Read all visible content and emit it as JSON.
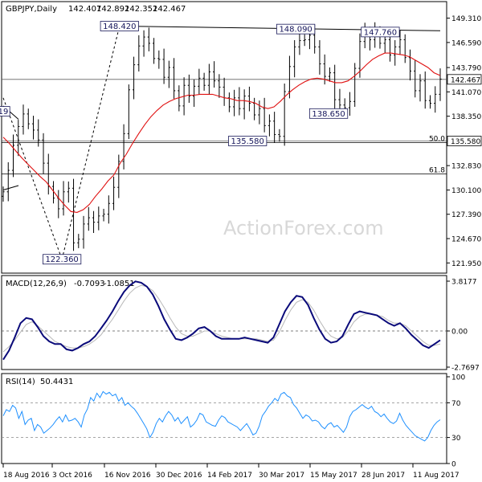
{
  "chart_data": [
    {
      "type": "candlestick",
      "panel": "price",
      "header": {
        "symbol": "GBPJPY,Daily",
        "open": "142.407",
        "high": "142.892",
        "low": "142.352",
        "close": "142.467"
      },
      "ylim": [
        120.9,
        150.8
      ],
      "y_ticks": [
        "149.310",
        "146.590",
        "143.790",
        "141.070",
        "138.350",
        "135.580",
        "132.830",
        "130.100",
        "127.390",
        "124.670",
        "121.950"
      ],
      "last_price_label": "142.467",
      "last_price": 142.467,
      "annotations": [
        {
          "text": "148.420",
          "x_date": "2016-11-25",
          "y": 148.42
        },
        {
          "text": "148.090",
          "x_date": "2017-04-24",
          "y": 148.09
        },
        {
          "text": "147.760",
          "x_date": "2017-07-05",
          "y": 147.76
        },
        {
          "text": "138.650",
          "x_date": "2017-05-22",
          "y": 138.65
        },
        {
          "text": "135.580",
          "x_date": "2017-03-14",
          "y": 135.58
        },
        {
          "text": "122.360",
          "x_date": "2016-10-07",
          "y": 122.36
        },
        {
          "text": "19",
          "x_date": "2016-08-18",
          "y": 138.9
        }
      ],
      "fib_levels": [
        {
          "label": "50.0",
          "value": 135.39
        },
        {
          "label": "61.8",
          "value": 131.9
        }
      ],
      "horizontal_lines": [
        {
          "value": 142.467,
          "label": "142.467"
        },
        {
          "value": 135.58,
          "label": "135.580"
        }
      ],
      "series": [
        {
          "name": "close",
          "values": [
            129.9,
            132.3,
            135.1,
            137.2,
            138.6,
            137.5,
            136.8,
            135.7,
            133.1,
            130.5,
            129.2,
            128.0,
            129.9,
            130.3,
            124.2,
            124.6,
            126.3,
            127.0,
            126.5,
            127.2,
            127.4,
            128.6,
            130.4,
            133.3,
            136.4,
            141.3,
            144.1,
            146.2,
            147.2,
            146.5,
            144.8,
            144.7,
            142.7,
            143.8,
            141.2,
            139.5,
            141.8,
            140.6,
            141.7,
            142.6,
            141.8,
            143.3,
            142.3,
            141.6,
            140.4,
            139.4,
            140.4,
            139.2,
            140.6,
            139.8,
            138.5,
            139.2,
            137.3,
            137.8,
            136.3,
            136.1,
            141.1,
            143.9,
            146.1,
            146.8,
            146.9,
            147.4,
            146.1,
            144.2,
            142.8,
            143.2,
            140.2,
            139.6,
            139.3,
            140.0,
            143.7,
            146.7,
            147.6,
            146.9,
            147.8,
            146.5,
            146.9,
            145.2,
            146.1,
            146.9,
            144.9,
            143.4,
            141.2,
            142.3,
            140.1,
            139.8,
            140.8,
            142.5
          ]
        },
        {
          "name": "MA",
          "values": [
            136.0,
            135.3,
            134.5,
            133.7,
            133.0,
            132.3,
            131.6,
            131.0,
            130.1,
            129.2,
            128.4,
            127.7,
            127.6,
            127.9,
            128.5,
            129.4,
            130.2,
            131.1,
            131.8,
            133.1,
            134.1,
            135.3,
            136.4,
            137.4,
            138.3,
            139.0,
            139.6,
            140.0,
            140.3,
            140.5,
            140.7,
            140.7,
            140.8,
            140.8,
            140.8,
            140.6,
            140.4,
            140.3,
            140.1,
            140.1,
            140.0,
            139.8,
            139.4,
            139.2,
            139.4,
            140.0,
            140.7,
            141.3,
            141.8,
            142.2,
            142.5,
            142.6,
            142.5,
            142.3,
            142.1,
            142.1,
            142.3,
            142.8,
            143.4,
            144.1,
            144.7,
            145.1,
            145.4,
            145.4,
            145.3,
            145.2,
            145.0,
            144.6,
            144.2,
            143.8,
            143.2,
            142.9
          ]
        }
      ],
      "trendlines": [
        {
          "from": {
            "x_date": "2016-08-18",
            "y": 130.1
          },
          "to": {
            "x_date": "2016-08-31",
            "y": 130.6
          }
        },
        {
          "from": {
            "x_date": "2016-08-18",
            "y": 139.5
          },
          "to": {
            "x_date": "2016-08-31",
            "y": 138.0
          }
        },
        {
          "from": {
            "x_date": "2016-08-18",
            "y": 140.4
          },
          "to": {
            "x_date": "2016-10-07",
            "y": 122.36
          }
        },
        {
          "from": {
            "x_date": "2016-10-07",
            "y": 122.36
          },
          "to": {
            "x_date": "2016-11-25",
            "y": 148.42
          }
        },
        {
          "from": {
            "x_date": "2016-11-25",
            "y": 148.42
          },
          "to": {
            "x_date": "2017-08-25",
            "y": 147.9
          }
        }
      ],
      "x_tick_labels": [
        "18 Aug 2016",
        "3 Oct 2016",
        "16 Nov 2016",
        "30 Dec 2016",
        "14 Feb 2017",
        "30 Mar 2017",
        "15 May 2017",
        "28 Jun 2017",
        "11 Aug 2017"
      ],
      "watermark": "ActionForex.com"
    },
    {
      "type": "line",
      "panel": "macd",
      "header": {
        "name": "MACD(12,26,9)",
        "macd": "-0.7093",
        "signal": "-1.0851"
      },
      "ylim": [
        -2.7697,
        3.8177
      ],
      "y_ticks": [
        "3.8177",
        "0.00",
        "-2.7697"
      ],
      "series": [
        {
          "name": "MACD",
          "values": [
            -2.2,
            -1.5,
            -0.5,
            0.6,
            1.0,
            0.9,
            0.3,
            -0.4,
            -0.8,
            -1.0,
            -1.0,
            -1.4,
            -1.5,
            -1.3,
            -1.0,
            -0.8,
            -0.4,
            0.2,
            0.8,
            1.5,
            2.3,
            3.0,
            3.5,
            3.8,
            3.7,
            3.4,
            2.8,
            1.9,
            0.9,
            0.1,
            -0.6,
            -0.7,
            -0.5,
            -0.2,
            0.2,
            0.3,
            0.0,
            -0.4,
            -0.6,
            -0.6,
            -0.6,
            -0.6,
            -0.5,
            -0.6,
            -0.7,
            -0.8,
            -0.9,
            -0.5,
            0.5,
            1.5,
            2.2,
            2.7,
            2.6,
            2.0,
            1.0,
            0.1,
            -0.6,
            -0.9,
            -0.8,
            -0.4,
            0.5,
            1.3,
            1.5,
            1.4,
            1.3,
            1.2,
            0.9,
            0.6,
            0.4,
            0.6,
            0.2,
            -0.3,
            -0.7,
            -1.1,
            -1.3,
            -1.0,
            -0.7
          ]
        },
        {
          "name": "Signal",
          "values": [
            -1.6,
            -1.2,
            -0.7,
            -0.1,
            0.5,
            0.7,
            0.4,
            0.0,
            -0.4,
            -0.8,
            -1.0,
            -1.2,
            -1.3,
            -1.3,
            -1.2,
            -1.0,
            -0.7,
            -0.3,
            0.3,
            0.9,
            1.6,
            2.3,
            2.9,
            3.3,
            3.5,
            3.4,
            3.1,
            2.5,
            1.8,
            1.0,
            0.3,
            -0.2,
            -0.4,
            -0.4,
            -0.2,
            0.0,
            0.0,
            -0.2,
            -0.4,
            -0.5,
            -0.6,
            -0.6,
            -0.6,
            -0.6,
            -0.6,
            -0.7,
            -0.8,
            -0.7,
            -0.1,
            0.8,
            1.6,
            2.2,
            2.4,
            2.2,
            1.6,
            0.8,
            0.1,
            -0.4,
            -0.6,
            -0.5,
            0.0,
            0.7,
            1.1,
            1.3,
            1.3,
            1.2,
            1.1,
            0.8,
            0.6,
            0.6,
            0.4,
            0.0,
            -0.4,
            -0.8,
            -1.1,
            -1.1,
            -1.0
          ]
        }
      ]
    },
    {
      "type": "line",
      "panel": "rsi",
      "header": {
        "name": "RSI(14)",
        "value": "50.4431"
      },
      "ylim": [
        0,
        100
      ],
      "y_ticks": [
        "100",
        "70",
        "30",
        "0"
      ],
      "levels": [
        70,
        30
      ],
      "series": [
        {
          "name": "RSI",
          "values": [
            55,
            62,
            60,
            67,
            64,
            52,
            60,
            45,
            50,
            52,
            38,
            45,
            42,
            35,
            38,
            41,
            45,
            50,
            54,
            48,
            56,
            49,
            50,
            52,
            48,
            42,
            56,
            63,
            76,
            72,
            81,
            76,
            83,
            80,
            82,
            78,
            80,
            72,
            76,
            67,
            70,
            66,
            63,
            58,
            52,
            46,
            40,
            30,
            36,
            46,
            52,
            48,
            55,
            60,
            56,
            49,
            53,
            46,
            50,
            54,
            42,
            45,
            50,
            58,
            56,
            48,
            46,
            44,
            43,
            50,
            55,
            53,
            48,
            46,
            44,
            42,
            38,
            42,
            46,
            40,
            33,
            35,
            43,
            55,
            60,
            66,
            70,
            75,
            72,
            80,
            82,
            78,
            76,
            68,
            64,
            58,
            52,
            56,
            54,
            49,
            50,
            48,
            43,
            40,
            45,
            47,
            42,
            44,
            40,
            36,
            42,
            54,
            60,
            62,
            65,
            68,
            65,
            63,
            66,
            60,
            58,
            54,
            57,
            52,
            48,
            46,
            49,
            58,
            50,
            44,
            40,
            36,
            32,
            30,
            28,
            26,
            30,
            38,
            44,
            48,
            50.44
          ]
        }
      ]
    }
  ]
}
